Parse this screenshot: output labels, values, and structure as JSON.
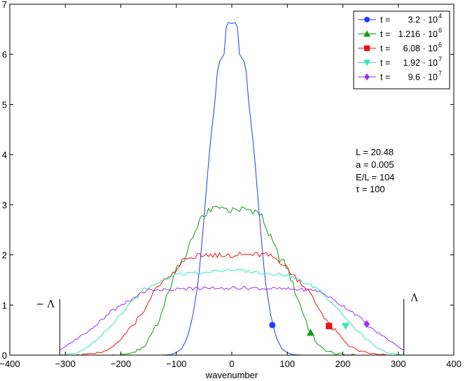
{
  "chart_data": {
    "type": "line",
    "xlabel": "wavenumber",
    "ylabel": "",
    "xlim": [
      -400,
      400
    ],
    "ylim": [
      0,
      7
    ],
    "xticks": [
      "−400",
      "−300",
      "−200",
      "−100",
      "0",
      "100",
      "200",
      "300",
      "400"
    ],
    "yticks": [
      "0",
      "1",
      "2",
      "3",
      "4",
      "5",
      "6",
      "7"
    ],
    "grid": false,
    "legend_position": "top-right",
    "cutoff": {
      "x": 310,
      "line_top": 1.12,
      "left_label": "− Λ",
      "right_label": "Λ"
    },
    "annotations": [
      "L = 20.48",
      "a = 0.005",
      "E/L = 104",
      "τ = 100"
    ],
    "series": [
      {
        "name": "t = 3.2 · 10^4",
        "legend_prefix": "t =",
        "legend_mantissa": "3.2 · 10",
        "legend_exp": "4",
        "color": "#1f3cff",
        "marker": "circle",
        "marker_point": [
          73,
          0.6
        ],
        "profile": [
          [
            0,
            6.6
          ],
          [
            5,
            6.65
          ],
          [
            8,
            6.6
          ],
          [
            12,
            6.5
          ],
          [
            14,
            6.0
          ],
          [
            25,
            5.8
          ],
          [
            30,
            5.1
          ],
          [
            40,
            4.1
          ],
          [
            48,
            3.0
          ],
          [
            55,
            2.1
          ],
          [
            60,
            1.5
          ],
          [
            70,
            0.8
          ],
          [
            80,
            0.35
          ],
          [
            90,
            0.13
          ],
          [
            100,
            0.05
          ],
          [
            110,
            0.01
          ],
          [
            130,
            0
          ]
        ],
        "noise": 0.0
      },
      {
        "name": "t = 1.216 · 10^6",
        "legend_prefix": "t =",
        "legend_mantissa": "1.216 · 10",
        "legend_exp": "6",
        "color": "#119911",
        "marker": "triangle-up",
        "marker_point": [
          142,
          0.45
        ],
        "profile": [
          [
            0,
            2.9
          ],
          [
            40,
            2.9
          ],
          [
            55,
            2.75
          ],
          [
            65,
            2.45
          ],
          [
            75,
            2.2
          ],
          [
            85,
            1.95
          ],
          [
            100,
            1.75
          ],
          [
            110,
            1.4
          ],
          [
            120,
            1.1
          ],
          [
            130,
            0.8
          ],
          [
            140,
            0.5
          ],
          [
            150,
            0.3
          ],
          [
            160,
            0.15
          ],
          [
            175,
            0.07
          ],
          [
            190,
            0.02
          ],
          [
            220,
            0
          ]
        ],
        "noise": 0.09
      },
      {
        "name": "t = 6.08 · 10^6",
        "legend_prefix": "t =",
        "legend_mantissa": "6.08 · 10",
        "legend_exp": "6",
        "color": "#ee1111",
        "marker": "square",
        "marker_point": [
          175,
          0.58
        ],
        "profile": [
          [
            0,
            2.0
          ],
          [
            60,
            2.0
          ],
          [
            75,
            1.95
          ],
          [
            90,
            1.85
          ],
          [
            110,
            1.6
          ],
          [
            125,
            1.45
          ],
          [
            140,
            1.25
          ],
          [
            150,
            1.05
          ],
          [
            165,
            0.8
          ],
          [
            180,
            0.55
          ],
          [
            195,
            0.38
          ],
          [
            210,
            0.2
          ],
          [
            230,
            0.08
          ],
          [
            250,
            0.03
          ],
          [
            280,
            0
          ]
        ],
        "noise": 0.06
      },
      {
        "name": "t = 1.92 · 10^7",
        "legend_prefix": "t =",
        "legend_mantissa": "1.92 · 10",
        "legend_exp": "7",
        "color": "#33e8b8",
        "marker": "triangle-down",
        "marker_point": [
          205,
          0.58
        ],
        "profile": [
          [
            0,
            1.7
          ],
          [
            100,
            1.6
          ],
          [
            120,
            1.5
          ],
          [
            140,
            1.4
          ],
          [
            160,
            1.3
          ],
          [
            175,
            1.1
          ],
          [
            190,
            0.95
          ],
          [
            200,
            0.8
          ],
          [
            215,
            0.6
          ],
          [
            230,
            0.45
          ],
          [
            245,
            0.3
          ],
          [
            260,
            0.15
          ],
          [
            280,
            0.05
          ],
          [
            300,
            0.01
          ],
          [
            310,
            0
          ]
        ],
        "noise": 0.035
      },
      {
        "name": "t = 9.6 · 10^7",
        "legend_prefix": "t =",
        "legend_mantissa": "9.6 · 10",
        "legend_exp": "7",
        "color": "#9933ee",
        "marker": "diamond",
        "marker_point": [
          243,
          0.62
        ],
        "profile": [
          [
            0,
            1.35
          ],
          [
            150,
            1.3
          ],
          [
            170,
            1.2
          ],
          [
            190,
            1.05
          ],
          [
            205,
            0.95
          ],
          [
            220,
            0.85
          ],
          [
            240,
            0.65
          ],
          [
            255,
            0.5
          ],
          [
            270,
            0.4
          ],
          [
            285,
            0.28
          ],
          [
            300,
            0.17
          ],
          [
            310,
            0.1
          ]
        ],
        "noise": 0.035
      }
    ]
  }
}
